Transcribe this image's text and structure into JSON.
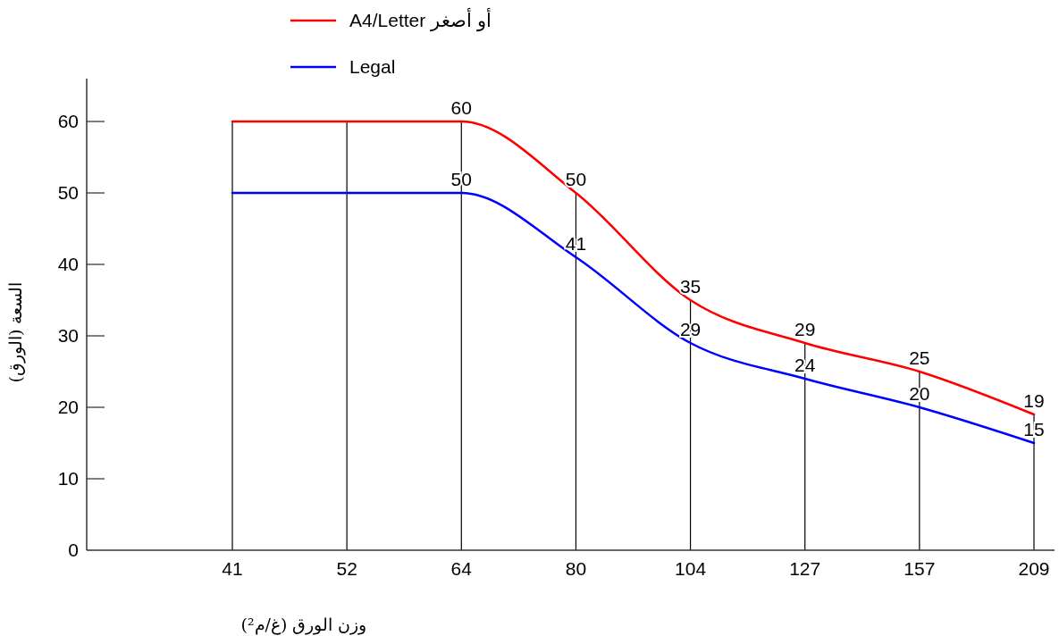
{
  "chart_data": {
    "type": "line",
    "xlabel": "وزن الورق (غ/م²)",
    "ylabel": "السعة (الورق)",
    "categories": [
      "41",
      "52",
      "64",
      "80",
      "104",
      "127",
      "157",
      "209"
    ],
    "series": [
      {
        "name": "A4/Letter أو أصغر",
        "color": "#ff0000",
        "values": [
          60,
          60,
          60,
          50,
          35,
          29,
          25,
          19
        ],
        "value_labels": [
          null,
          null,
          "60",
          "50",
          "35",
          "29",
          "25",
          "19"
        ]
      },
      {
        "name": "Legal",
        "color": "#0000ff",
        "values": [
          50,
          50,
          50,
          41,
          29,
          24,
          20,
          15
        ],
        "value_labels": [
          null,
          null,
          "50",
          "41",
          "29",
          "24",
          "20",
          "15"
        ]
      }
    ],
    "ylim": [
      0,
      66
    ],
    "yticks": [
      0,
      10,
      20,
      30,
      40,
      50,
      60
    ],
    "grid": "x",
    "legend": "top",
    "marker": "none",
    "line_style": "solid"
  }
}
